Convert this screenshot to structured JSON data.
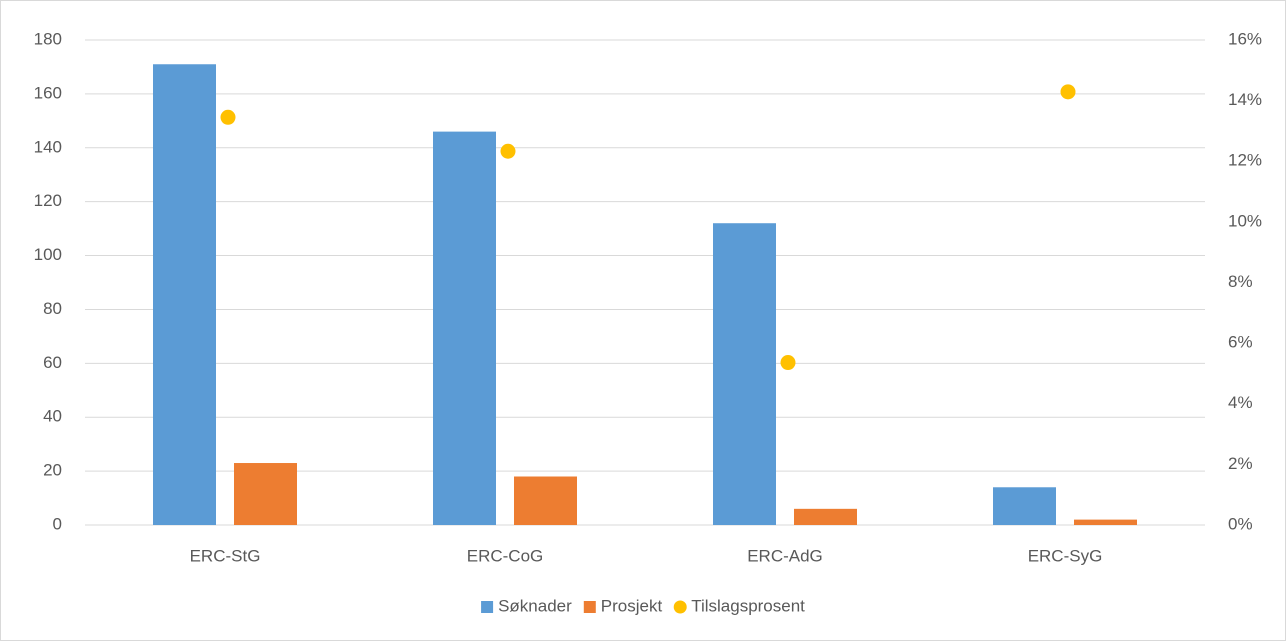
{
  "chart_data": {
    "type": "bar",
    "categories": [
      "ERC-StG",
      "ERC-CoG",
      "ERC-AdG",
      "ERC-SyG"
    ],
    "series": [
      {
        "name": "Søknader",
        "color": "#5b9bd5",
        "values": [
          171,
          146,
          112,
          14
        ]
      },
      {
        "name": "Prosjekt",
        "color": "#ed7d31",
        "values": [
          23,
          18,
          6,
          2
        ]
      },
      {
        "name": "Tilslagsprosent",
        "color": "#ffc000",
        "type": "scatter",
        "axis": "y2",
        "values": [
          13.45,
          12.33,
          5.36,
          14.29
        ]
      }
    ],
    "ylim": [
      0,
      180
    ],
    "yticks": [
      0,
      20,
      40,
      60,
      80,
      100,
      120,
      140,
      160,
      180
    ],
    "y2lim": [
      0,
      16
    ],
    "y2ticks": [
      {
        "value": 0,
        "label": "0%"
      },
      {
        "value": 2,
        "label": "2%"
      },
      {
        "value": 4,
        "label": "4%"
      },
      {
        "value": 6,
        "label": "6%"
      },
      {
        "value": 8,
        "label": "8%"
      },
      {
        "value": 10,
        "label": "10%"
      },
      {
        "value": 12,
        "label": "12%"
      },
      {
        "value": 14,
        "label": "14%"
      },
      {
        "value": 16,
        "label": "16%"
      }
    ],
    "grid": true,
    "legend": "bottom"
  }
}
